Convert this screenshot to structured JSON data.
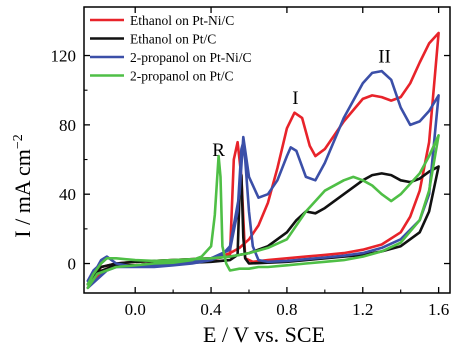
{
  "chart_data": {
    "type": "line",
    "xlabel": "E / V vs. SCE",
    "ylabel_main": "I / mA cm",
    "ylabel_sup": "−2",
    "xlim": [
      -0.27,
      1.66
    ],
    "ylim": [
      -17,
      148
    ],
    "xticks": [
      0.0,
      0.4,
      0.8,
      1.2,
      1.6
    ],
    "xtick_labels": [
      "0.0",
      "0.4",
      "0.8",
      "1.2",
      "1.6"
    ],
    "yticks": [
      0,
      40,
      80,
      120
    ],
    "ytick_labels": [
      "0",
      "40",
      "80",
      "120"
    ],
    "grid": false,
    "legend_position": "top-left",
    "annotations": [
      {
        "text": "R",
        "x": 0.44,
        "y": 62
      },
      {
        "text": "I",
        "x": 0.845,
        "y": 92
      },
      {
        "text": "II",
        "x": 1.315,
        "y": 116
      }
    ],
    "series": [
      {
        "name": "Ethanol on Pt-Ni/C",
        "color": "#e8232a",
        "x": [
          -0.25,
          -0.22,
          -0.18,
          -0.1,
          0.0,
          0.1,
          0.2,
          0.3,
          0.4,
          0.45,
          0.5,
          0.55,
          0.6,
          0.65,
          0.7,
          0.75,
          0.8,
          0.84,
          0.88,
          0.92,
          0.95,
          1.0,
          1.1,
          1.2,
          1.25,
          1.3,
          1.35,
          1.4,
          1.45,
          1.5,
          1.55,
          1.6,
          1.55,
          1.5,
          1.45,
          1.4,
          1.3,
          1.2,
          1.1,
          1.0,
          0.9,
          0.8,
          0.7,
          0.62,
          0.58,
          0.56,
          0.54,
          0.52,
          0.5,
          0.4,
          0.3,
          0.2,
          0.1,
          0.0,
          -0.1,
          -0.15,
          -0.2,
          -0.25
        ],
        "y": [
          -12,
          -8,
          -2,
          0,
          1,
          1.5,
          2,
          2.5,
          3,
          4,
          6,
          9,
          14,
          22,
          35,
          55,
          78,
          87,
          84,
          68,
          62,
          66,
          82,
          95,
          97,
          96,
          94,
          96,
          104,
          116,
          127,
          133,
          70,
          42,
          27,
          18,
          11,
          8,
          6,
          5,
          4,
          3,
          2,
          1,
          3,
          50,
          70,
          60,
          5,
          2,
          1,
          0,
          0,
          -1,
          -1,
          -3,
          -8,
          -14
        ]
      },
      {
        "name": "Ethanol on Pt/C",
        "color": "#111111",
        "x": [
          -0.25,
          -0.22,
          -0.18,
          -0.1,
          0.0,
          0.1,
          0.2,
          0.3,
          0.4,
          0.5,
          0.6,
          0.7,
          0.8,
          0.85,
          0.9,
          0.95,
          1.0,
          1.1,
          1.2,
          1.25,
          1.3,
          1.35,
          1.4,
          1.45,
          1.5,
          1.55,
          1.6,
          1.55,
          1.5,
          1.4,
          1.3,
          1.2,
          1.1,
          1.0,
          0.9,
          0.8,
          0.7,
          0.6,
          0.58,
          0.57,
          0.56,
          0.55,
          0.54,
          0.5,
          0.4,
          0.3,
          0.2,
          0.1,
          0.0,
          -0.1,
          -0.2,
          -0.25
        ],
        "y": [
          -12,
          -6,
          -2,
          0,
          1,
          1.5,
          2,
          2.5,
          3,
          4,
          6,
          10,
          18,
          25,
          30,
          29,
          32,
          40,
          48,
          51,
          52,
          51,
          48,
          47,
          49,
          53,
          56,
          30,
          18,
          10,
          7,
          5,
          4,
          3,
          2,
          1,
          0.5,
          0,
          3,
          15,
          51,
          40,
          5,
          2,
          1,
          0.5,
          0,
          0,
          -1,
          -1,
          -5,
          -12
        ]
      },
      {
        "name": "2-propanol on Pt-Ni/C",
        "color": "#3b4fa8",
        "x": [
          -0.25,
          -0.22,
          -0.2,
          -0.18,
          -0.15,
          -0.1,
          0.0,
          0.1,
          0.2,
          0.3,
          0.4,
          0.45,
          0.5,
          0.55,
          0.57,
          0.6,
          0.65,
          0.7,
          0.75,
          0.8,
          0.82,
          0.85,
          0.9,
          0.95,
          1.0,
          1.1,
          1.2,
          1.25,
          1.3,
          1.35,
          1.4,
          1.45,
          1.5,
          1.55,
          1.6,
          1.55,
          1.5,
          1.4,
          1.3,
          1.2,
          1.1,
          1.0,
          0.9,
          0.8,
          0.7,
          0.65,
          0.62,
          0.6,
          0.58,
          0.57,
          0.56,
          0.54,
          0.5,
          0.4,
          0.3,
          0.2,
          0.1,
          0.0,
          -0.1,
          -0.15,
          -0.2,
          -0.25
        ],
        "y": [
          -10,
          -4,
          -2,
          2,
          4,
          0,
          -2,
          -2,
          -1,
          0,
          2,
          4,
          10,
          40,
          73,
          50,
          38,
          40,
          48,
          62,
          67,
          65,
          50,
          48,
          58,
          84,
          104,
          110,
          111,
          106,
          90,
          80,
          82,
          88,
          97,
          40,
          25,
          14,
          9,
          6,
          4.5,
          3.5,
          2.5,
          1.5,
          1,
          2,
          10,
          30,
          60,
          70,
          66,
          30,
          8,
          3,
          1,
          0,
          -1,
          -2,
          -2,
          -4,
          -9,
          -14
        ]
      },
      {
        "name": "2-propanol on Pt/C",
        "color": "#4fbf46",
        "x": [
          -0.25,
          -0.22,
          -0.18,
          -0.15,
          -0.1,
          0.0,
          0.1,
          0.2,
          0.3,
          0.4,
          0.5,
          0.6,
          0.7,
          0.8,
          0.9,
          1.0,
          1.1,
          1.15,
          1.2,
          1.25,
          1.3,
          1.35,
          1.4,
          1.5,
          1.55,
          1.6,
          1.55,
          1.5,
          1.4,
          1.3,
          1.2,
          1.1,
          1.0,
          0.9,
          0.8,
          0.7,
          0.65,
          0.6,
          0.55,
          0.5,
          0.48,
          0.46,
          0.45,
          0.44,
          0.42,
          0.4,
          0.35,
          0.3,
          0.2,
          0.1,
          0.0,
          -0.1,
          -0.2,
          -0.25
        ],
        "y": [
          -12,
          -6,
          0,
          3,
          3,
          2,
          1.5,
          2,
          2.5,
          3,
          4,
          6,
          9,
          14,
          30,
          42,
          48,
          50,
          48,
          45,
          40,
          36,
          40,
          52,
          62,
          74,
          42,
          25,
          12,
          7,
          4,
          2,
          1,
          0,
          -1,
          -2,
          -2,
          -3,
          -3,
          -4,
          0,
          10,
          50,
          62,
          28,
          10,
          4,
          2,
          0.5,
          0,
          -1,
          -2,
          -6,
          -14
        ]
      }
    ]
  }
}
